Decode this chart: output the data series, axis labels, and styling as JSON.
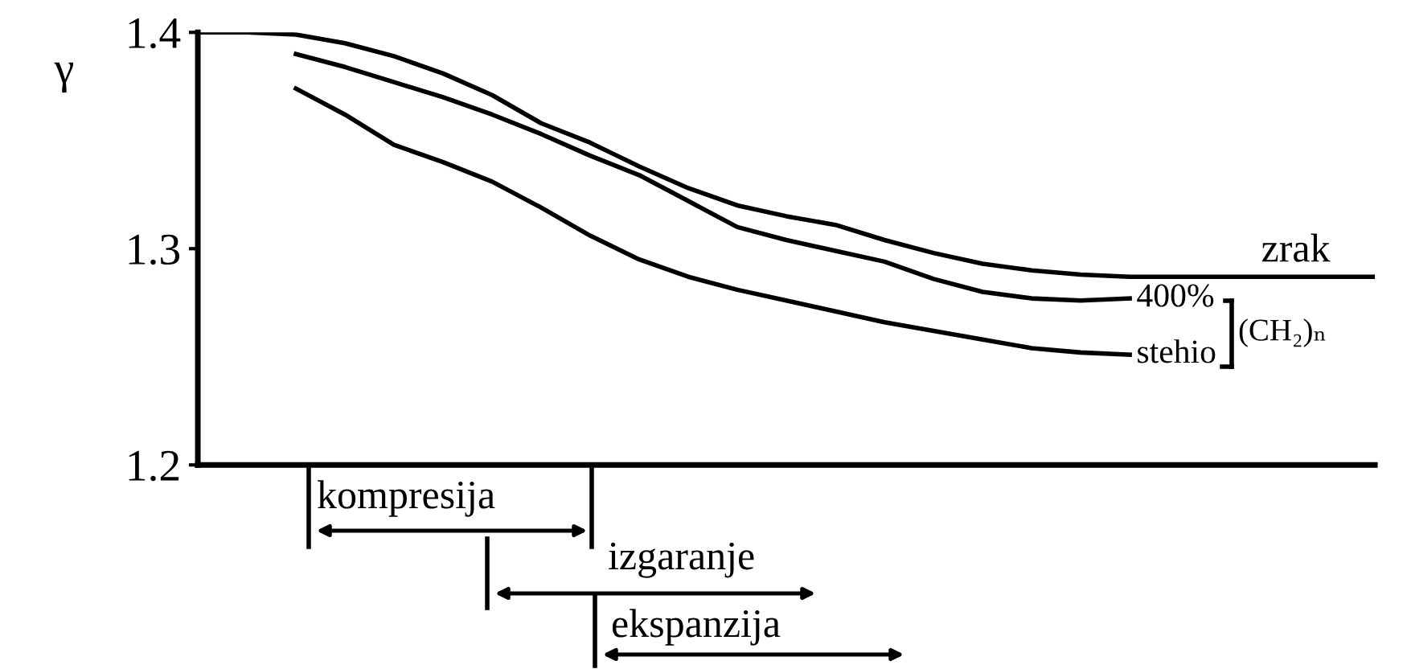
{
  "chart_data": {
    "type": "line",
    "ylabel": "γ",
    "categories": [
      null,
      null,
      null,
      null,
      null,
      null,
      null,
      null,
      null,
      null,
      null,
      null,
      null,
      null,
      null,
      null,
      null,
      null,
      null,
      null,
      null,
      null,
      null,
      null,
      null
    ],
    "series": [
      {
        "name": "zrak",
        "color": "#000000",
        "values": [
          1.4,
          1.4,
          1.399,
          1.395,
          1.389,
          1.381,
          1.371,
          1.358,
          1.349,
          1.338,
          1.328,
          1.32,
          1.315,
          1.311,
          1.304,
          1.298,
          1.293,
          1.29,
          1.288,
          1.287,
          1.287,
          1.287,
          1.287,
          1.287,
          1.287
        ]
      },
      {
        "name": "400%",
        "color": "#000000",
        "values": [
          null,
          null,
          1.39,
          1.384,
          1.377,
          1.37,
          1.362,
          1.353,
          1.343,
          1.334,
          1.322,
          1.31,
          1.304,
          1.299,
          1.294,
          1.286,
          1.28,
          1.277,
          1.276,
          1.277,
          null,
          null,
          null,
          null,
          null
        ]
      },
      {
        "name": "stehio",
        "color": "#000000",
        "values": [
          null,
          null,
          1.374,
          1.362,
          1.348,
          1.34,
          1.331,
          1.319,
          1.306,
          1.295,
          1.287,
          1.281,
          1.276,
          1.271,
          1.266,
          1.262,
          1.258,
          1.254,
          1.252,
          1.251,
          null,
          null,
          null,
          null,
          null
        ]
      }
    ],
    "annotations": [
      "(CH₂)ₙ",
      "kompresija",
      "izgaranje",
      "ekspanzija"
    ],
    "ylim": [
      1.2,
      1.4
    ],
    "yticks": [
      1.2,
      1.3,
      1.4
    ],
    "tick_labels": "y",
    "grid": false,
    "legend": "right",
    "marker": "none",
    "line_style": "solid"
  }
}
